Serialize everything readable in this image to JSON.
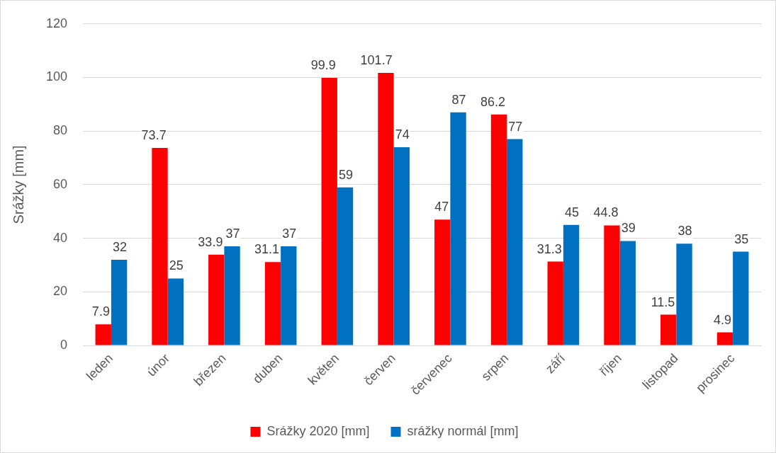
{
  "chart_data": {
    "type": "bar",
    "ylabel": "Srážky [mm]",
    "categories": [
      "leden",
      "únor",
      "březen",
      "duben",
      "květen",
      "červen",
      "červenec",
      "srpen",
      "září",
      "říjen",
      "listopad",
      "prosinec"
    ],
    "series": [
      {
        "name": "Srážky 2020 [mm]",
        "color": "#ff0000",
        "values": [
          7.9,
          73.7,
          33.9,
          31.1,
          99.9,
          101.7,
          47,
          86.2,
          31.3,
          44.8,
          11.5,
          4.9
        ]
      },
      {
        "name": "srážky normál [mm]",
        "color": "#0070c0",
        "values": [
          32,
          25,
          37,
          37,
          59,
          74,
          87,
          77,
          45,
          39,
          38,
          35
        ]
      }
    ],
    "ylim": [
      0,
      120
    ],
    "yticks": [
      0,
      20,
      40,
      60,
      80,
      100,
      120
    ],
    "grid": "y",
    "legend": "bottom",
    "data_labels": true
  }
}
